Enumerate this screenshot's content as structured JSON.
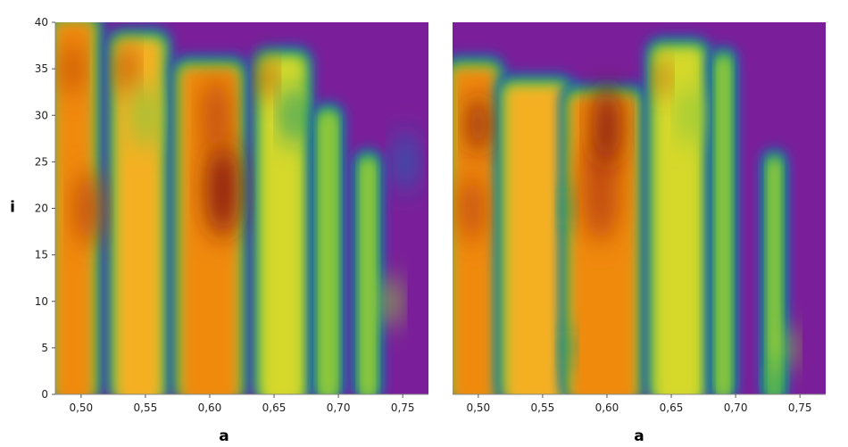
{
  "chart_data": [
    {
      "type": "heatmap",
      "panel": "left",
      "xlabel": "a",
      "ylabel": "i",
      "xlim": [
        0.48,
        0.77
      ],
      "ylim": [
        0,
        40
      ],
      "x_ticks": [
        0.5,
        0.55,
        0.6,
        0.65,
        0.7,
        0.75
      ],
      "x_tick_labels": [
        "0,50",
        "0,55",
        "0,60",
        "0,65",
        "0,70",
        "0,75"
      ],
      "y_ticks": [
        0,
        5,
        10,
        15,
        20,
        25,
        30,
        35,
        40
      ],
      "y_tick_labels": [
        "0",
        "5",
        "10",
        "15",
        "20",
        "25",
        "30",
        "35",
        "40"
      ],
      "background_color": "#7a1f99",
      "colorscale": [
        "#7a1f99",
        "#2060b0",
        "#1a9a6a",
        "#8ec83a",
        "#d6d82a",
        "#f5b020",
        "#f08a10",
        "#c04a10",
        "#8a1e0a"
      ],
      "bands": [
        {
          "x0": 0.48,
          "x1": 0.509,
          "y_top": 40,
          "color": "#f08a10"
        },
        {
          "x0": 0.528,
          "x1": 0.562,
          "y_top": 38,
          "color": "#f5b020"
        },
        {
          "x0": 0.578,
          "x1": 0.622,
          "y_top": 35,
          "color": "#f08a10"
        },
        {
          "x0": 0.641,
          "x1": 0.672,
          "y_top": 36,
          "color": "#d6d82a"
        },
        {
          "x0": 0.687,
          "x1": 0.697,
          "y_top": 30,
          "color": "#8ec83a"
        },
        {
          "x0": 0.719,
          "x1": 0.727,
          "y_top": 25,
          "color": "#8ec83a"
        }
      ],
      "blobs": [
        {
          "x": 0.493,
          "y": 35,
          "color": "#c04a10",
          "r": 0.7
        },
        {
          "x": 0.506,
          "y": 20,
          "color": "#c04a10",
          "r": 1.0
        },
        {
          "x": 0.535,
          "y": 35,
          "color": "#c04a10",
          "r": 0.7
        },
        {
          "x": 0.55,
          "y": 30,
          "color": "#8ec83a",
          "r": 0.9
        },
        {
          "x": 0.61,
          "y": 22,
          "color": "#8a1e0a",
          "r": 1.3
        },
        {
          "x": 0.605,
          "y": 30,
          "color": "#c04a10",
          "r": 1.0
        },
        {
          "x": 0.644,
          "y": 34,
          "color": "#c04a10",
          "r": 0.6
        },
        {
          "x": 0.665,
          "y": 30,
          "color": "#1a9a6a",
          "r": 0.8
        },
        {
          "x": 0.74,
          "y": 10,
          "color": "#8ec83a",
          "r": 0.7
        },
        {
          "x": 0.752,
          "y": 25,
          "color": "#2060b0",
          "r": 0.8
        }
      ]
    },
    {
      "type": "heatmap",
      "panel": "right",
      "xlabel": "a",
      "ylabel": "",
      "xlim": [
        0.48,
        0.77
      ],
      "ylim": [
        0,
        40
      ],
      "x_ticks": [
        0.5,
        0.55,
        0.6,
        0.65,
        0.7,
        0.75
      ],
      "x_tick_labels": [
        "0,50",
        "0,55",
        "0,60",
        "0,65",
        "0,70",
        "0,75"
      ],
      "y_ticks": [],
      "y_tick_labels": [],
      "background_color": "#7a1f99",
      "colorscale": [
        "#7a1f99",
        "#2060b0",
        "#1a9a6a",
        "#8ec83a",
        "#d6d82a",
        "#f5b020",
        "#f08a10",
        "#c04a10",
        "#8a1e0a"
      ],
      "bands": [
        {
          "x0": 0.48,
          "x1": 0.513,
          "y_top": 35,
          "color": "#f08a10"
        },
        {
          "x0": 0.522,
          "x1": 0.567,
          "y_top": 33,
          "color": "#f5b020"
        },
        {
          "x0": 0.572,
          "x1": 0.623,
          "y_top": 32,
          "color": "#f08a10"
        },
        {
          "x0": 0.638,
          "x1": 0.673,
          "y_top": 37,
          "color": "#d6d82a"
        },
        {
          "x0": 0.687,
          "x1": 0.694,
          "y_top": 36,
          "color": "#8ec83a"
        },
        {
          "x0": 0.727,
          "x1": 0.733,
          "y_top": 25,
          "color": "#8ec83a"
        }
      ],
      "blobs": [
        {
          "x": 0.5,
          "y": 29,
          "color": "#8a1e0a",
          "r": 0.8
        },
        {
          "x": 0.495,
          "y": 20,
          "color": "#c04a10",
          "r": 0.9
        },
        {
          "x": 0.569,
          "y": 20,
          "color": "#1a9a6a",
          "r": 0.5
        },
        {
          "x": 0.569,
          "y": 5,
          "color": "#1a9a6a",
          "r": 0.5
        },
        {
          "x": 0.595,
          "y": 22,
          "color": "#c04a10",
          "r": 1.4
        },
        {
          "x": 0.6,
          "y": 29,
          "color": "#8a1e0a",
          "r": 1.1
        },
        {
          "x": 0.643,
          "y": 34,
          "color": "#c04a10",
          "r": 0.5
        },
        {
          "x": 0.665,
          "y": 30,
          "color": "#8ec83a",
          "r": 0.8
        },
        {
          "x": 0.74,
          "y": 5,
          "color": "#8ec83a",
          "r": 0.6
        },
        {
          "x": 0.73,
          "y": 1,
          "color": "#1a9a6a",
          "r": 0.6
        }
      ]
    }
  ]
}
